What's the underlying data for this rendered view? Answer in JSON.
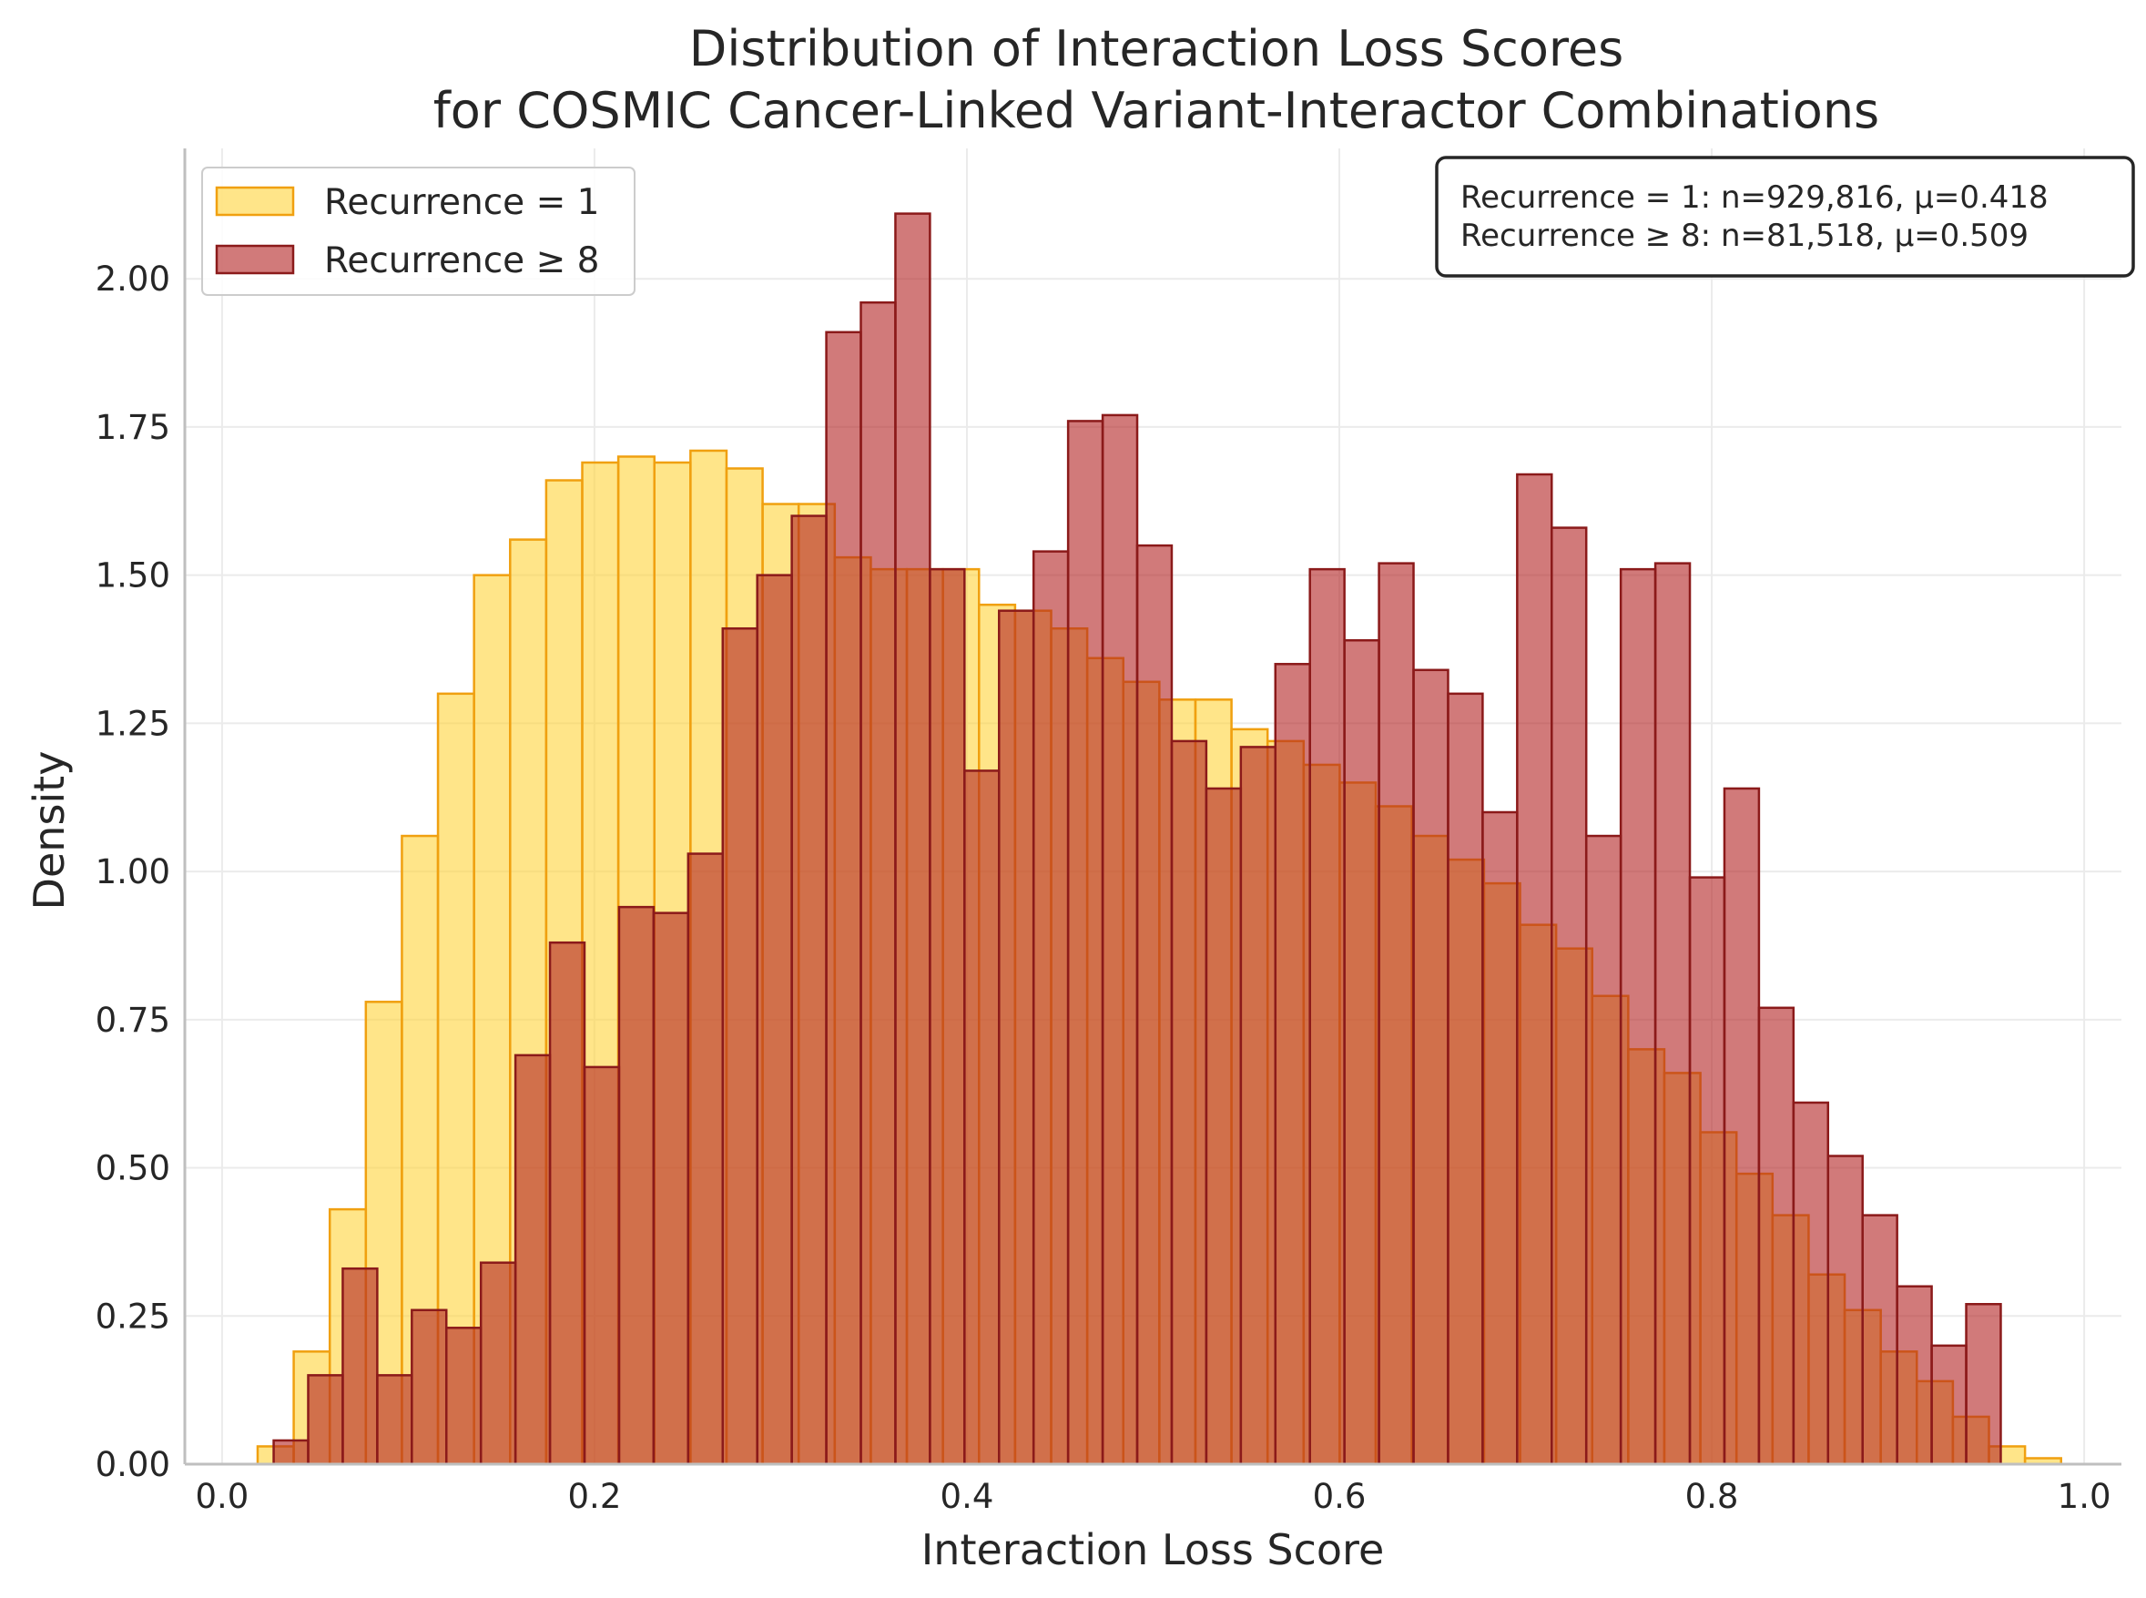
{
  "chart_data": {
    "type": "histogram",
    "title_lines": [
      "Distribution of Interaction Loss Scores",
      "for COSMIC Cancer-Linked Variant-Interactor Combinations"
    ],
    "xlabel": "Interaction Loss Score",
    "ylabel": "Density",
    "xlim": [
      -0.02,
      1.02
    ],
    "ylim": [
      0,
      2.22
    ],
    "x_ticks": [
      0.0,
      0.2,
      0.4,
      0.6,
      0.8,
      1.0
    ],
    "x_tick_labels": [
      "0.0",
      "0.2",
      "0.4",
      "0.6",
      "0.8",
      "1.0"
    ],
    "y_ticks": [
      0.0,
      0.25,
      0.5,
      0.75,
      1.0,
      1.25,
      1.5,
      1.75,
      2.0
    ],
    "y_tick_labels": [
      "0.00",
      "0.25",
      "0.50",
      "0.75",
      "1.00",
      "1.25",
      "1.50",
      "1.75",
      "2.00"
    ],
    "grid": true,
    "legend_position": "upper-left",
    "series": [
      {
        "name": "Recurrence = 1",
        "fill": "#ffd43b",
        "edge": "#f0a010",
        "alpha": 0.6,
        "bin_start": 0.0191,
        "bin_width": 0.01937,
        "values": [
          0.03,
          0.19,
          0.43,
          0.78,
          1.06,
          1.3,
          1.5,
          1.56,
          1.66,
          1.69,
          1.7,
          1.69,
          1.71,
          1.68,
          1.62,
          1.62,
          1.53,
          1.51,
          1.51,
          1.51,
          1.45,
          1.44,
          1.41,
          1.36,
          1.32,
          1.29,
          1.29,
          1.24,
          1.22,
          1.18,
          1.15,
          1.11,
          1.06,
          1.02,
          0.98,
          0.91,
          0.87,
          0.79,
          0.7,
          0.66,
          0.56,
          0.49,
          0.42,
          0.32,
          0.26,
          0.19,
          0.14,
          0.08,
          0.03,
          0.01
        ]
      },
      {
        "name": "Recurrence ≥ 8",
        "fill": "#b22222",
        "edge": "#8b1a1a",
        "alpha": 0.6,
        "bin_start": 0.0277,
        "bin_width": 0.01855,
        "values": [
          0.04,
          0.15,
          0.33,
          0.15,
          0.26,
          0.23,
          0.34,
          0.69,
          0.88,
          0.67,
          0.94,
          0.93,
          1.03,
          1.41,
          1.5,
          1.6,
          1.91,
          1.96,
          2.11,
          1.51,
          1.17,
          1.44,
          1.54,
          1.76,
          1.77,
          1.55,
          1.22,
          1.14,
          1.21,
          1.35,
          1.51,
          1.39,
          1.52,
          1.34,
          1.3,
          1.1,
          1.67,
          1.58,
          1.06,
          1.51,
          1.52,
          0.99,
          1.14,
          0.77,
          0.61,
          0.52,
          0.42,
          0.3,
          0.2,
          0.27
        ]
      }
    ],
    "stats_box": [
      "Recurrence = 1: n=929,816, μ=0.418",
      "Recurrence ≥ 8: n=81,518, μ=0.509"
    ]
  }
}
